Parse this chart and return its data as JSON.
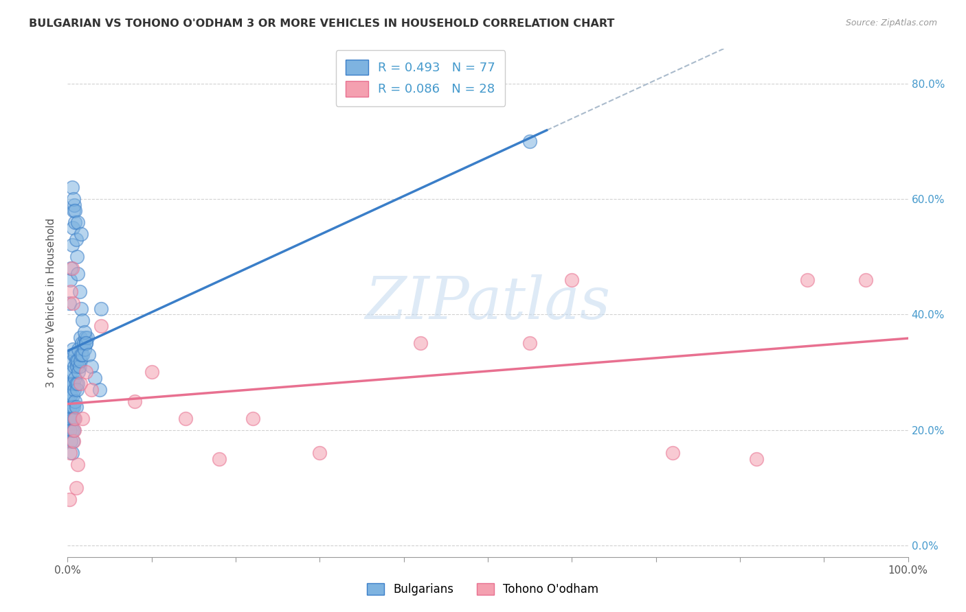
{
  "title": "BULGARIAN VS TOHONO O'ODHAM 3 OR MORE VEHICLES IN HOUSEHOLD CORRELATION CHART",
  "source": "Source: ZipAtlas.com",
  "ylabel": "3 or more Vehicles in Household",
  "xlim": [
    0.0,
    1.0
  ],
  "ylim": [
    -0.02,
    0.86
  ],
  "y_ticks": [
    0.0,
    0.2,
    0.4,
    0.6,
    0.8
  ],
  "y_tick_labels": [
    "0.0%",
    "20.0%",
    "40.0%",
    "60.0%",
    "80.0%"
  ],
  "bulgarian_color": "#7EB3E0",
  "tohono_color": "#F4A0B0",
  "bulgarian_R": 0.493,
  "bulgarian_N": 77,
  "tohono_R": 0.086,
  "tohono_N": 28,
  "bulg_line_color": "#3A7EC8",
  "toh_line_color": "#E87090",
  "dashed_line_color": "#AABBCC",
  "bulg_x": [
    0.001,
    0.002,
    0.002,
    0.003,
    0.003,
    0.003,
    0.004,
    0.004,
    0.004,
    0.004,
    0.005,
    0.005,
    0.005,
    0.005,
    0.005,
    0.006,
    0.006,
    0.006,
    0.006,
    0.006,
    0.007,
    0.007,
    0.007,
    0.007,
    0.008,
    0.008,
    0.008,
    0.009,
    0.009,
    0.009,
    0.01,
    0.01,
    0.01,
    0.011,
    0.011,
    0.012,
    0.012,
    0.013,
    0.013,
    0.014,
    0.015,
    0.015,
    0.016,
    0.017,
    0.018,
    0.019,
    0.02,
    0.021,
    0.022,
    0.023,
    0.002,
    0.003,
    0.004,
    0.005,
    0.006,
    0.007,
    0.008,
    0.009,
    0.01,
    0.011,
    0.012,
    0.014,
    0.016,
    0.018,
    0.02,
    0.022,
    0.025,
    0.028,
    0.032,
    0.038,
    0.005,
    0.007,
    0.009,
    0.012,
    0.016,
    0.04,
    0.55
  ],
  "bulg_y": [
    0.25,
    0.22,
    0.28,
    0.2,
    0.24,
    0.26,
    0.18,
    0.22,
    0.26,
    0.3,
    0.16,
    0.2,
    0.24,
    0.28,
    0.32,
    0.18,
    0.22,
    0.26,
    0.3,
    0.34,
    0.2,
    0.24,
    0.28,
    0.33,
    0.22,
    0.27,
    0.31,
    0.25,
    0.29,
    0.33,
    0.24,
    0.28,
    0.32,
    0.27,
    0.31,
    0.28,
    0.32,
    0.3,
    0.34,
    0.31,
    0.32,
    0.36,
    0.33,
    0.35,
    0.33,
    0.35,
    0.34,
    0.36,
    0.35,
    0.36,
    0.42,
    0.46,
    0.48,
    0.52,
    0.55,
    0.58,
    0.59,
    0.56,
    0.53,
    0.5,
    0.47,
    0.44,
    0.41,
    0.39,
    0.37,
    0.35,
    0.33,
    0.31,
    0.29,
    0.27,
    0.62,
    0.6,
    0.58,
    0.56,
    0.54,
    0.41,
    0.7
  ],
  "toh_x": [
    0.002,
    0.003,
    0.004,
    0.005,
    0.006,
    0.007,
    0.008,
    0.009,
    0.01,
    0.012,
    0.015,
    0.018,
    0.022,
    0.028,
    0.04,
    0.08,
    0.1,
    0.14,
    0.18,
    0.22,
    0.3,
    0.42,
    0.55,
    0.6,
    0.72,
    0.82,
    0.88,
    0.95
  ],
  "toh_y": [
    0.08,
    0.16,
    0.44,
    0.48,
    0.42,
    0.18,
    0.2,
    0.22,
    0.1,
    0.14,
    0.28,
    0.22,
    0.3,
    0.27,
    0.38,
    0.25,
    0.3,
    0.22,
    0.15,
    0.22,
    0.16,
    0.35,
    0.35,
    0.46,
    0.16,
    0.15,
    0.46,
    0.46
  ]
}
